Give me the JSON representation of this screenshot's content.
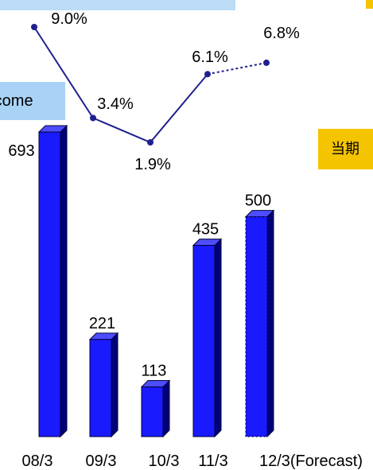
{
  "legend_box": {
    "label": "Income"
  },
  "period_badge": {
    "label": "当期"
  },
  "chart_data": [
    {
      "type": "bar",
      "categories": [
        "08/3",
        "09/3",
        "10/3",
        "11/3",
        "12/3(Forecast)"
      ],
      "values": [
        693,
        221,
        113,
        435,
        500
      ],
      "forecast_index": 4,
      "bar_color": "#1a1aff",
      "forecast_color": "#1a1aff"
    },
    {
      "type": "line",
      "categories": [
        "08/3",
        "09/3",
        "10/3",
        "11/3",
        "12/3(Forecast)"
      ],
      "labels": [
        "9.0%",
        "3.4%",
        "1.9%",
        "6.1%",
        "6.8%"
      ],
      "values": [
        9.0,
        3.4,
        1.9,
        6.1,
        6.8
      ],
      "line_color": "#1f1f8f",
      "forecast_dashed": true
    }
  ],
  "colors": {
    "top_strip": "#bcdcf7",
    "legend_bg": "#a9d3f6",
    "badge_bg": "#f5c400"
  }
}
